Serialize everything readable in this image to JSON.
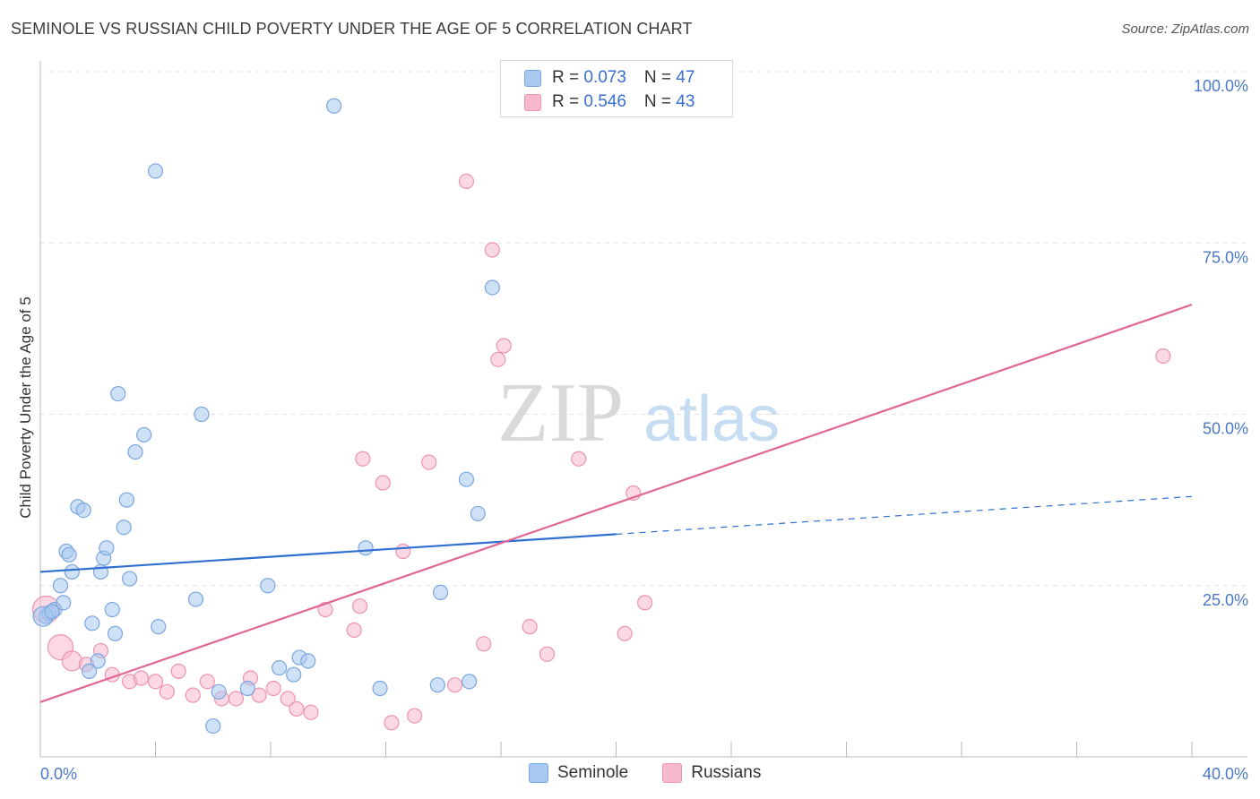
{
  "title": "SEMINOLE VS RUSSIAN CHILD POVERTY UNDER THE AGE OF 5 CORRELATION CHART",
  "source": "Source: ZipAtlas.com",
  "legend": {
    "rows": [
      {
        "r_label": "R = ",
        "r_value": "0.073",
        "n_label": "N = ",
        "n_value": "47"
      },
      {
        "r_label": "R = ",
        "r_value": "0.546",
        "n_label": "N = ",
        "n_value": "43"
      }
    ]
  },
  "bottom_legend": {
    "seminole": "Seminole",
    "russians": "Russians"
  },
  "colors": {
    "seminole_fill": "#a8c8f0",
    "seminole_stroke": "#7aa6e0",
    "seminole_line": "#2f6fd0",
    "russians_fill": "#f7b8cc",
    "russians_stroke": "#ee93b0",
    "russians_line": "#e06694",
    "grid": "#e3e3e3",
    "axis_text": "#4a78c8"
  },
  "chart_data": {
    "type": "scatter",
    "title": "SEMINOLE VS RUSSIAN CHILD POVERTY UNDER THE AGE OF 5 CORRELATION CHART",
    "xlabel": "",
    "ylabel": "Child Poverty Under the Age of 5",
    "xlim": [
      0,
      40
    ],
    "ylim": [
      0,
      100
    ],
    "x_tick_labels": [
      "0.0%",
      "40.0%"
    ],
    "y_tick_labels": [
      "25.0%",
      "50.0%",
      "75.0%",
      "100.0%"
    ],
    "y_ticks": [
      25,
      50,
      75,
      100
    ],
    "grid": true,
    "watermark": "ZIPatlas",
    "series": [
      {
        "name": "Seminole",
        "points": [
          [
            0.2,
            20.5
          ],
          [
            0.3,
            21
          ],
          [
            0.5,
            21.5
          ],
          [
            0.7,
            25
          ],
          [
            0.8,
            22.5
          ],
          [
            0.9,
            30
          ],
          [
            1.0,
            29.5
          ],
          [
            1.1,
            27
          ],
          [
            1.3,
            36.5
          ],
          [
            1.5,
            36
          ],
          [
            1.8,
            19.5
          ],
          [
            2.0,
            14
          ],
          [
            1.7,
            12.5
          ],
          [
            2.1,
            27
          ],
          [
            2.2,
            29
          ],
          [
            2.3,
            30.5
          ],
          [
            2.5,
            21.5
          ],
          [
            2.6,
            18
          ],
          [
            2.7,
            53
          ],
          [
            2.9,
            33.5
          ],
          [
            3.0,
            37.5
          ],
          [
            3.1,
            26
          ],
          [
            3.3,
            44.5
          ],
          [
            3.6,
            47
          ],
          [
            4.0,
            85.5
          ],
          [
            4.1,
            19
          ],
          [
            5.4,
            23
          ],
          [
            5.6,
            50
          ],
          [
            6.0,
            4.5
          ],
          [
            6.2,
            9.5
          ],
          [
            7.2,
            10
          ],
          [
            7.9,
            25
          ],
          [
            8.3,
            13
          ],
          [
            8.8,
            12
          ],
          [
            9.0,
            14.5
          ],
          [
            9.3,
            14
          ],
          [
            10.2,
            95
          ],
          [
            11.3,
            30.5
          ],
          [
            11.8,
            10
          ],
          [
            13.8,
            10.5
          ],
          [
            13.9,
            24
          ],
          [
            14.9,
            11
          ],
          [
            14.8,
            40.5
          ],
          [
            15.2,
            35.5
          ],
          [
            15.7,
            68.5
          ],
          [
            0.1,
            20.5
          ],
          [
            0.4,
            21.2
          ]
        ],
        "trend": {
          "x": [
            0,
            20
          ],
          "y": [
            27,
            32.5
          ]
        },
        "trend_extension": {
          "x": [
            20,
            40
          ],
          "y": [
            32.5,
            38
          ]
        }
      },
      {
        "name": "Russians",
        "points": [
          [
            0.2,
            21.5
          ],
          [
            0.7,
            16
          ],
          [
            1.1,
            14
          ],
          [
            1.6,
            13.5
          ],
          [
            2.1,
            15.5
          ],
          [
            2.5,
            12
          ],
          [
            3.1,
            11
          ],
          [
            3.5,
            11.5
          ],
          [
            4.0,
            11
          ],
          [
            4.4,
            9.5
          ],
          [
            4.8,
            12.5
          ],
          [
            5.3,
            9
          ],
          [
            5.8,
            11
          ],
          [
            6.3,
            8.5
          ],
          [
            6.8,
            8.5
          ],
          [
            7.3,
            11.5
          ],
          [
            7.6,
            9
          ],
          [
            8.1,
            10
          ],
          [
            8.6,
            8.5
          ],
          [
            8.9,
            7
          ],
          [
            9.4,
            6.5
          ],
          [
            9.9,
            21.5
          ],
          [
            10.9,
            18.5
          ],
          [
            11.1,
            22
          ],
          [
            11.2,
            43.5
          ],
          [
            11.9,
            40
          ],
          [
            12.2,
            5
          ],
          [
            12.6,
            30
          ],
          [
            13.0,
            6
          ],
          [
            13.5,
            43
          ],
          [
            14.4,
            10.5
          ],
          [
            14.8,
            84
          ],
          [
            15.4,
            16.5
          ],
          [
            15.7,
            74
          ],
          [
            15.9,
            58
          ],
          [
            16.1,
            60
          ],
          [
            17.0,
            19
          ],
          [
            17.6,
            15
          ],
          [
            18.7,
            43.5
          ],
          [
            20.3,
            18
          ],
          [
            20.6,
            38.5
          ],
          [
            21.0,
            22.5
          ],
          [
            39.0,
            58.5
          ]
        ],
        "trend": {
          "x": [
            0,
            40
          ],
          "y": [
            8,
            66
          ]
        }
      }
    ]
  }
}
